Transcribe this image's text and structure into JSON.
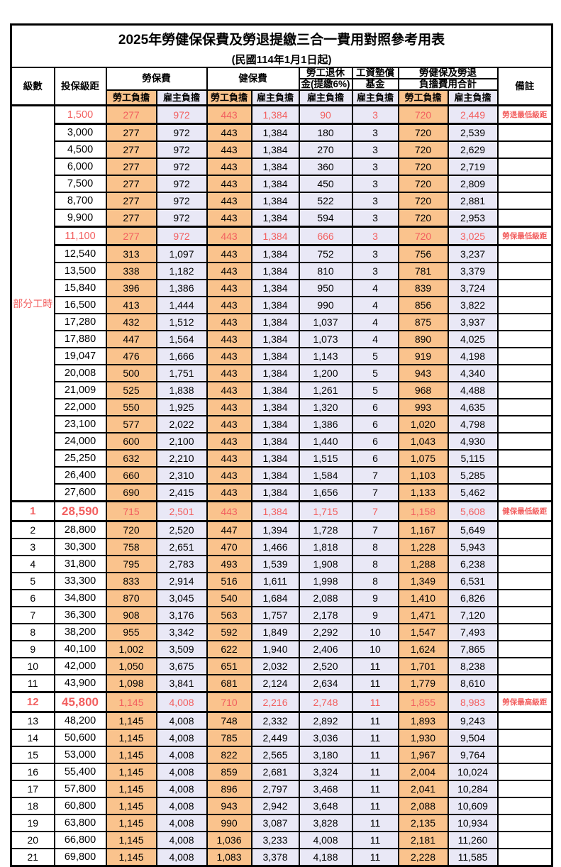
{
  "table": {
    "title": "2025年勞健保保費及勞退提繳三合一費用對照參考用表",
    "subtitle": "(民國114年1月1日起)",
    "header": {
      "level": "級數",
      "bracket": "投保級距",
      "labor": "勞保費",
      "health": "健保費",
      "pension_top": "勞工退休",
      "pension_bottom": "金(提繳6%)",
      "fund_top": "工資墊償",
      "fund_bottom": "基金",
      "total_top": "勞健保及勞退",
      "total_bottom": "負擔費用合計",
      "remark": "備註",
      "employee": "勞工負擔",
      "employer": "雇主負擔"
    },
    "colors": {
      "employee_bg": "#FAC38D",
      "employer_bg": "#E9E8F6",
      "highlight_text": "#F25F5F",
      "border": "#000000"
    },
    "rows": [
      {
        "level": "部分工時",
        "level_span": 23,
        "bracket": "1,500",
        "values": [
          "277",
          "972",
          "443",
          "1,384",
          "90",
          "3",
          "720",
          "2,449"
        ],
        "remark": "勞退最低級距",
        "red": true,
        "big": false
      },
      {
        "level": null,
        "bracket": "3,000",
        "values": [
          "277",
          "972",
          "443",
          "1,384",
          "180",
          "3",
          "720",
          "2,539"
        ],
        "remark": "",
        "red": false,
        "big": false
      },
      {
        "level": null,
        "bracket": "4,500",
        "values": [
          "277",
          "972",
          "443",
          "1,384",
          "270",
          "3",
          "720",
          "2,629"
        ],
        "remark": "",
        "red": false,
        "big": false
      },
      {
        "level": null,
        "bracket": "6,000",
        "values": [
          "277",
          "972",
          "443",
          "1,384",
          "360",
          "3",
          "720",
          "2,719"
        ],
        "remark": "",
        "red": false,
        "big": false
      },
      {
        "level": null,
        "bracket": "7,500",
        "values": [
          "277",
          "972",
          "443",
          "1,384",
          "450",
          "3",
          "720",
          "2,809"
        ],
        "remark": "",
        "red": false,
        "big": false
      },
      {
        "level": null,
        "bracket": "8,700",
        "values": [
          "277",
          "972",
          "443",
          "1,384",
          "522",
          "3",
          "720",
          "2,881"
        ],
        "remark": "",
        "red": false,
        "big": false
      },
      {
        "level": null,
        "bracket": "9,900",
        "values": [
          "277",
          "972",
          "443",
          "1,384",
          "594",
          "3",
          "720",
          "2,953"
        ],
        "remark": "",
        "red": false,
        "big": false
      },
      {
        "level": null,
        "bracket": "11,100",
        "values": [
          "277",
          "972",
          "443",
          "1,384",
          "666",
          "3",
          "720",
          "3,025"
        ],
        "remark": "勞保最低級距",
        "red": true,
        "big": false
      },
      {
        "level": null,
        "bracket": "12,540",
        "values": [
          "313",
          "1,097",
          "443",
          "1,384",
          "752",
          "3",
          "756",
          "3,237"
        ],
        "remark": "",
        "red": false,
        "big": false
      },
      {
        "level": null,
        "bracket": "13,500",
        "values": [
          "338",
          "1,182",
          "443",
          "1,384",
          "810",
          "3",
          "781",
          "3,379"
        ],
        "remark": "",
        "red": false,
        "big": false
      },
      {
        "level": null,
        "bracket": "15,840",
        "values": [
          "396",
          "1,386",
          "443",
          "1,384",
          "950",
          "4",
          "839",
          "3,724"
        ],
        "remark": "",
        "red": false,
        "big": false
      },
      {
        "level": null,
        "bracket": "16,500",
        "values": [
          "413",
          "1,444",
          "443",
          "1,384",
          "990",
          "4",
          "856",
          "3,822"
        ],
        "remark": "",
        "red": false,
        "big": false
      },
      {
        "level": null,
        "bracket": "17,280",
        "values": [
          "432",
          "1,512",
          "443",
          "1,384",
          "1,037",
          "4",
          "875",
          "3,937"
        ],
        "remark": "",
        "red": false,
        "big": false
      },
      {
        "level": null,
        "bracket": "17,880",
        "values": [
          "447",
          "1,564",
          "443",
          "1,384",
          "1,073",
          "4",
          "890",
          "4,025"
        ],
        "remark": "",
        "red": false,
        "big": false
      },
      {
        "level": null,
        "bracket": "19,047",
        "values": [
          "476",
          "1,666",
          "443",
          "1,384",
          "1,143",
          "5",
          "919",
          "4,198"
        ],
        "remark": "",
        "red": false,
        "big": false
      },
      {
        "level": null,
        "bracket": "20,008",
        "values": [
          "500",
          "1,751",
          "443",
          "1,384",
          "1,200",
          "5",
          "943",
          "4,340"
        ],
        "remark": "",
        "red": false,
        "big": false
      },
      {
        "level": null,
        "bracket": "21,009",
        "values": [
          "525",
          "1,838",
          "443",
          "1,384",
          "1,261",
          "5",
          "968",
          "4,488"
        ],
        "remark": "",
        "red": false,
        "big": false
      },
      {
        "level": null,
        "bracket": "22,000",
        "values": [
          "550",
          "1,925",
          "443",
          "1,384",
          "1,320",
          "6",
          "993",
          "4,635"
        ],
        "remark": "",
        "red": false,
        "big": false
      },
      {
        "level": null,
        "bracket": "23,100",
        "values": [
          "577",
          "2,022",
          "443",
          "1,384",
          "1,386",
          "6",
          "1,020",
          "4,798"
        ],
        "remark": "",
        "red": false,
        "big": false
      },
      {
        "level": null,
        "bracket": "24,000",
        "values": [
          "600",
          "2,100",
          "443",
          "1,384",
          "1,440",
          "6",
          "1,043",
          "4,930"
        ],
        "remark": "",
        "red": false,
        "big": false
      },
      {
        "level": null,
        "bracket": "25,250",
        "values": [
          "632",
          "2,210",
          "443",
          "1,384",
          "1,515",
          "6",
          "1,075",
          "5,115"
        ],
        "remark": "",
        "red": false,
        "big": false
      },
      {
        "level": null,
        "bracket": "26,400",
        "values": [
          "660",
          "2,310",
          "443",
          "1,384",
          "1,584",
          "7",
          "1,103",
          "5,285"
        ],
        "remark": "",
        "red": false,
        "big": false
      },
      {
        "level": null,
        "bracket": "27,600",
        "values": [
          "690",
          "2,415",
          "443",
          "1,384",
          "1,656",
          "7",
          "1,133",
          "5,462"
        ],
        "remark": "",
        "red": false,
        "big": false
      },
      {
        "level": "1",
        "bracket": "28,590",
        "values": [
          "715",
          "2,501",
          "443",
          "1,384",
          "1,715",
          "7",
          "1,158",
          "5,608"
        ],
        "remark": "健保最低級距",
        "red": true,
        "big": true
      },
      {
        "level": "2",
        "bracket": "28,800",
        "values": [
          "720",
          "2,520",
          "447",
          "1,394",
          "1,728",
          "7",
          "1,167",
          "5,649"
        ],
        "remark": "",
        "red": false,
        "big": false
      },
      {
        "level": "3",
        "bracket": "30,300",
        "values": [
          "758",
          "2,651",
          "470",
          "1,466",
          "1,818",
          "8",
          "1,228",
          "5,943"
        ],
        "remark": "",
        "red": false,
        "big": false
      },
      {
        "level": "4",
        "bracket": "31,800",
        "values": [
          "795",
          "2,783",
          "493",
          "1,539",
          "1,908",
          "8",
          "1,288",
          "6,238"
        ],
        "remark": "",
        "red": false,
        "big": false
      },
      {
        "level": "5",
        "bracket": "33,300",
        "values": [
          "833",
          "2,914",
          "516",
          "1,611",
          "1,998",
          "8",
          "1,349",
          "6,531"
        ],
        "remark": "",
        "red": false,
        "big": false
      },
      {
        "level": "6",
        "bracket": "34,800",
        "values": [
          "870",
          "3,045",
          "540",
          "1,684",
          "2,088",
          "9",
          "1,410",
          "6,826"
        ],
        "remark": "",
        "red": false,
        "big": false
      },
      {
        "level": "7",
        "bracket": "36,300",
        "values": [
          "908",
          "3,176",
          "563",
          "1,757",
          "2,178",
          "9",
          "1,471",
          "7,120"
        ],
        "remark": "",
        "red": false,
        "big": false
      },
      {
        "level": "8",
        "bracket": "38,200",
        "values": [
          "955",
          "3,342",
          "592",
          "1,849",
          "2,292",
          "10",
          "1,547",
          "7,493"
        ],
        "remark": "",
        "red": false,
        "big": false
      },
      {
        "level": "9",
        "bracket": "40,100",
        "values": [
          "1,002",
          "3,509",
          "622",
          "1,940",
          "2,406",
          "10",
          "1,624",
          "7,865"
        ],
        "remark": "",
        "red": false,
        "big": false
      },
      {
        "level": "10",
        "bracket": "42,000",
        "values": [
          "1,050",
          "3,675",
          "651",
          "2,032",
          "2,520",
          "11",
          "1,701",
          "8,238"
        ],
        "remark": "",
        "red": false,
        "big": false
      },
      {
        "level": "11",
        "bracket": "43,900",
        "values": [
          "1,098",
          "3,841",
          "681",
          "2,124",
          "2,634",
          "11",
          "1,779",
          "8,610"
        ],
        "remark": "",
        "red": false,
        "big": false
      },
      {
        "level": "12",
        "bracket": "45,800",
        "values": [
          "1,145",
          "4,008",
          "710",
          "2,216",
          "2,748",
          "11",
          "1,855",
          "8,983"
        ],
        "remark": "勞保最高級距",
        "red": true,
        "big": true
      },
      {
        "level": "13",
        "bracket": "48,200",
        "values": [
          "1,145",
          "4,008",
          "748",
          "2,332",
          "2,892",
          "11",
          "1,893",
          "9,243"
        ],
        "remark": "",
        "red": false,
        "big": false
      },
      {
        "level": "14",
        "bracket": "50,600",
        "values": [
          "1,145",
          "4,008",
          "785",
          "2,449",
          "3,036",
          "11",
          "1,930",
          "9,504"
        ],
        "remark": "",
        "red": false,
        "big": false
      },
      {
        "level": "15",
        "bracket": "53,000",
        "values": [
          "1,145",
          "4,008",
          "822",
          "2,565",
          "3,180",
          "11",
          "1,967",
          "9,764"
        ],
        "remark": "",
        "red": false,
        "big": false
      },
      {
        "level": "16",
        "bracket": "55,400",
        "values": [
          "1,145",
          "4,008",
          "859",
          "2,681",
          "3,324",
          "11",
          "2,004",
          "10,024"
        ],
        "remark": "",
        "red": false,
        "big": false
      },
      {
        "level": "17",
        "bracket": "57,800",
        "values": [
          "1,145",
          "4,008",
          "896",
          "2,797",
          "3,468",
          "11",
          "2,041",
          "10,284"
        ],
        "remark": "",
        "red": false,
        "big": false
      },
      {
        "level": "18",
        "bracket": "60,800",
        "values": [
          "1,145",
          "4,008",
          "943",
          "2,942",
          "3,648",
          "11",
          "2,088",
          "10,609"
        ],
        "remark": "",
        "red": false,
        "big": false
      },
      {
        "level": "19",
        "bracket": "63,800",
        "values": [
          "1,145",
          "4,008",
          "990",
          "3,087",
          "3,828",
          "11",
          "2,135",
          "10,934"
        ],
        "remark": "",
        "red": false,
        "big": false
      },
      {
        "level": "20",
        "bracket": "66,800",
        "values": [
          "1,145",
          "4,008",
          "1,036",
          "3,233",
          "4,008",
          "11",
          "2,181",
          "11,260"
        ],
        "remark": "",
        "red": false,
        "big": false
      },
      {
        "level": "21",
        "bracket": "69,800",
        "values": [
          "1,145",
          "4,008",
          "1,083",
          "3,378",
          "4,188",
          "11",
          "2,228",
          "11,585"
        ],
        "remark": "",
        "red": false,
        "big": false
      }
    ]
  }
}
